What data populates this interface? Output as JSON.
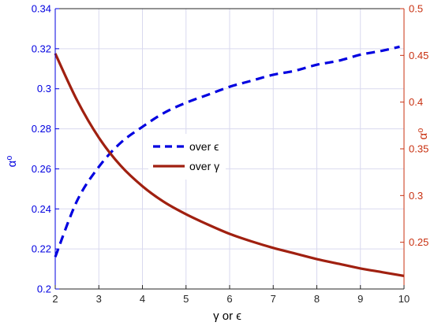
{
  "chart_data": {
    "type": "line",
    "xlabel": "γ or ϵ",
    "ylabel_left": "α⁰",
    "ylabel_right": "α⁰",
    "xlim": [
      2,
      10
    ],
    "ylim_left": [
      0.2,
      0.34
    ],
    "ylim_right": [
      0.2,
      0.5
    ],
    "x_ticks": [
      "2",
      "3",
      "4",
      "5",
      "6",
      "7",
      "8",
      "9",
      "10"
    ],
    "y_ticks_left": [
      "0.2",
      "0.22",
      "0.24",
      "0.26",
      "0.28",
      "0.3",
      "0.32",
      "0.34"
    ],
    "y_ticks_right": [
      "0.25",
      "0.3",
      "0.35",
      "0.4",
      "0.45",
      "0.5"
    ],
    "grid": true,
    "legend_position": "center",
    "series": [
      {
        "name": "over ϵ",
        "axis": "left",
        "style": "dashed",
        "color": "#0000e0",
        "x": [
          2,
          2.5,
          3,
          3.5,
          4,
          4.5,
          5,
          5.5,
          6,
          6.5,
          7,
          7.5,
          8,
          8.5,
          9,
          9.5,
          9.9
        ],
        "y": [
          0.216,
          0.244,
          0.261,
          0.273,
          0.281,
          0.288,
          0.293,
          0.297,
          0.301,
          0.304,
          0.307,
          0.309,
          0.312,
          0.314,
          0.317,
          0.319,
          0.321
        ]
      },
      {
        "name": "over γ",
        "axis": "right",
        "style": "solid",
        "color": "#a02010",
        "x": [
          2,
          2.5,
          3,
          3.5,
          4,
          4.5,
          5,
          5.5,
          6,
          6.5,
          7,
          7.5,
          8,
          8.5,
          9,
          9.5,
          10
        ],
        "y": [
          0.452,
          0.402,
          0.362,
          0.332,
          0.31,
          0.293,
          0.28,
          0.269,
          0.259,
          0.251,
          0.244,
          0.238,
          0.232,
          0.227,
          0.222,
          0.218,
          0.214
        ]
      }
    ],
    "colors": {
      "left_axis": "#0000e0",
      "right_axis": "#c83010",
      "grid": "#d9d9ef"
    }
  }
}
